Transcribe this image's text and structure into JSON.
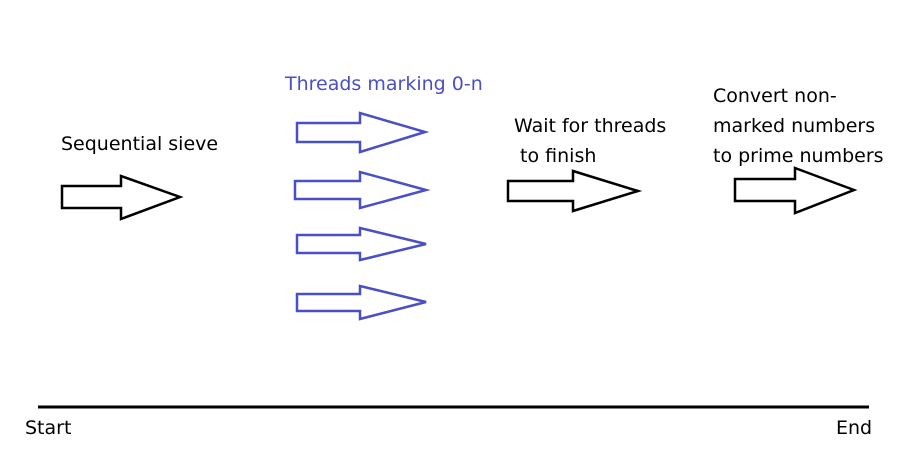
{
  "diagram": {
    "colors": {
      "black": "#000000",
      "blue": "#4a4fc8",
      "background": "#ffffff"
    },
    "steps": {
      "sequential": {
        "label": "Sequential sieve"
      },
      "threads": {
        "label": "Threads marking 0-n",
        "arrow_count": 4
      },
      "wait": {
        "label": "Wait for threads\n to finish"
      },
      "convert": {
        "label": "Convert non-\nmarked numbers\nto prime numbers"
      }
    },
    "timeline": {
      "start_label": "Start",
      "end_label": "End"
    }
  }
}
